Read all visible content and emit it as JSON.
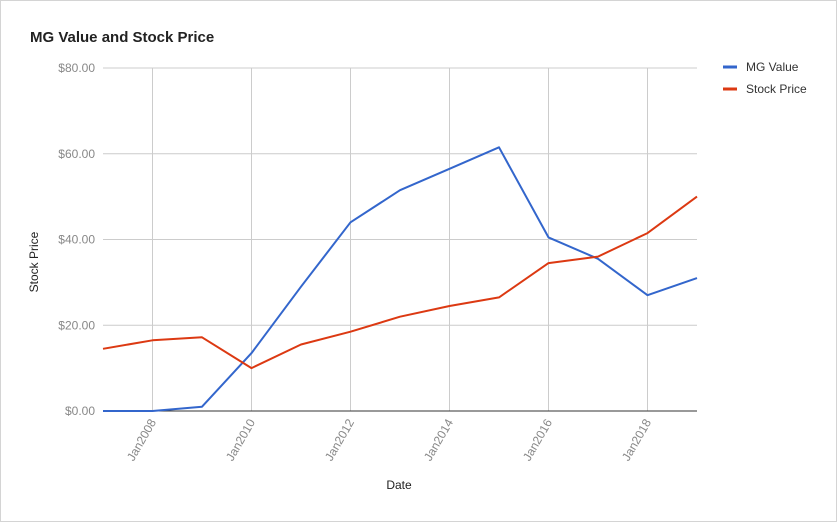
{
  "chart_data": {
    "type": "line",
    "title": "MG Value and Stock Price",
    "xlabel": "Date",
    "ylabel": "Stock Price",
    "x": [
      2007,
      2008,
      2009,
      2010,
      2011,
      2012,
      2013,
      2014,
      2015,
      2016,
      2017,
      2018,
      2019
    ],
    "xlim": [
      2007,
      2019
    ],
    "ylim": [
      0,
      80
    ],
    "y_ticks": [
      0,
      20,
      40,
      60,
      80
    ],
    "y_tick_labels": [
      "$0.00",
      "$20.00",
      "$40.00",
      "$60.00",
      "$80.00"
    ],
    "x_ticks": [
      2008,
      2010,
      2012,
      2014,
      2016,
      2018
    ],
    "x_tick_labels": [
      "Jan2008",
      "Jan2010",
      "Jan2012",
      "Jan2014",
      "Jan2016",
      "Jan2018"
    ],
    "grid": true,
    "legend_position": "right",
    "series": [
      {
        "name": "MG Value",
        "color": "#3366cc",
        "values": [
          0.0,
          0.0,
          1.0,
          13.5,
          29.0,
          44.0,
          51.5,
          56.5,
          61.5,
          40.5,
          35.5,
          27.0,
          31.0
        ]
      },
      {
        "name": "Stock Price",
        "color": "#dc3912",
        "values": [
          14.5,
          16.5,
          17.2,
          10.0,
          15.5,
          18.5,
          22.0,
          24.5,
          26.5,
          34.5,
          36.0,
          41.5,
          50.0
        ]
      }
    ]
  }
}
